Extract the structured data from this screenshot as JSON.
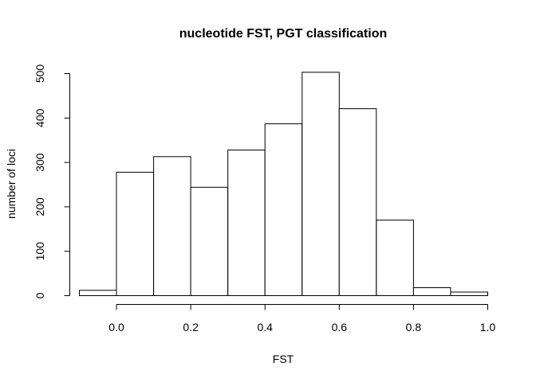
{
  "chart_data": {
    "type": "bar",
    "title": "nucleotide FST, PGT classification",
    "xlabel": "FST",
    "ylabel": "number of loci",
    "xlim": [
      -0.1,
      1.0
    ],
    "ylim": [
      0,
      500
    ],
    "x_ticks": [
      "0.0",
      "0.2",
      "0.4",
      "0.6",
      "0.8",
      "1.0"
    ],
    "y_ticks": [
      "0",
      "100",
      "200",
      "300",
      "400",
      "500"
    ],
    "bins": [
      {
        "start": -0.1,
        "end": 0.0,
        "value": 12
      },
      {
        "start": 0.0,
        "end": 0.1,
        "value": 278
      },
      {
        "start": 0.1,
        "end": 0.2,
        "value": 313
      },
      {
        "start": 0.2,
        "end": 0.3,
        "value": 244
      },
      {
        "start": 0.3,
        "end": 0.4,
        "value": 328
      },
      {
        "start": 0.4,
        "end": 0.5,
        "value": 387
      },
      {
        "start": 0.5,
        "end": 0.6,
        "value": 503
      },
      {
        "start": 0.6,
        "end": 0.7,
        "value": 421
      },
      {
        "start": 0.7,
        "end": 0.8,
        "value": 170
      },
      {
        "start": 0.8,
        "end": 0.9,
        "value": 18
      },
      {
        "start": 0.9,
        "end": 1.0,
        "value": 8
      }
    ],
    "grid": false,
    "legend": "none"
  }
}
